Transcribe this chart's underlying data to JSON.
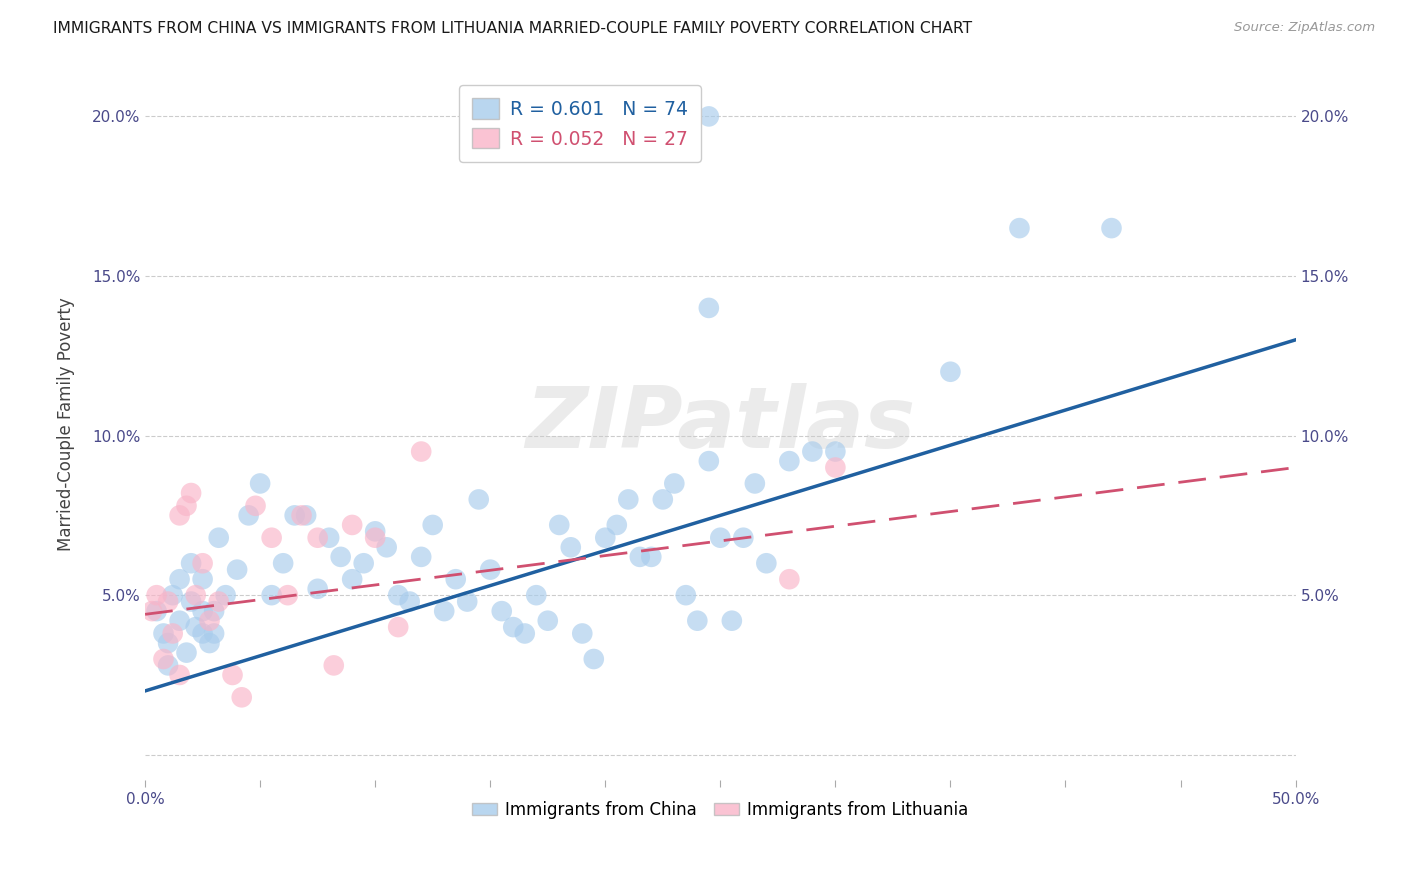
{
  "title": "IMMIGRANTS FROM CHINA VS IMMIGRANTS FROM LITHUANIA MARRIED-COUPLE FAMILY POVERTY CORRELATION CHART",
  "source": "Source: ZipAtlas.com",
  "ylabel": "Married-Couple Family Poverty",
  "xlim": [
    0.0,
    0.5
  ],
  "ylim": [
    -0.008,
    0.215
  ],
  "xticks": [
    0.0,
    0.05,
    0.1,
    0.15,
    0.2,
    0.25,
    0.3,
    0.35,
    0.4,
    0.45,
    0.5
  ],
  "yticks": [
    0.0,
    0.05,
    0.1,
    0.15,
    0.2
  ],
  "xtick_labels_full": [
    "0.0%",
    "",
    "",
    "",
    "",
    "",
    "",
    "",
    "",
    "",
    "50.0%"
  ],
  "ytick_labels_left": [
    "",
    "5.0%",
    "10.0%",
    "15.0%",
    "20.0%"
  ],
  "ytick_labels_right": [
    "",
    "5.0%",
    "10.0%",
    "15.0%",
    "20.0%"
  ],
  "china_color": "#a8ccec",
  "lithuania_color": "#f9b4c8",
  "china_line_color": "#2060a0",
  "lithuania_line_color": "#d05070",
  "R_china": 0.601,
  "N_china": 74,
  "R_lithuania": 0.052,
  "N_lithuania": 27,
  "legend_label_china": "Immigrants from China",
  "legend_label_lithuania": "Immigrants from Lithuania",
  "china_x": [
    0.005,
    0.008,
    0.01,
    0.01,
    0.012,
    0.015,
    0.015,
    0.018,
    0.02,
    0.02,
    0.022,
    0.025,
    0.025,
    0.025,
    0.028,
    0.03,
    0.03,
    0.032,
    0.035,
    0.04,
    0.045,
    0.05,
    0.055,
    0.06,
    0.065,
    0.07,
    0.075,
    0.08,
    0.085,
    0.09,
    0.095,
    0.1,
    0.105,
    0.11,
    0.115,
    0.12,
    0.125,
    0.13,
    0.135,
    0.14,
    0.145,
    0.15,
    0.155,
    0.16,
    0.165,
    0.17,
    0.175,
    0.18,
    0.185,
    0.19,
    0.195,
    0.2,
    0.205,
    0.21,
    0.215,
    0.22,
    0.225,
    0.23,
    0.235,
    0.24,
    0.245,
    0.25,
    0.255,
    0.26,
    0.265,
    0.27,
    0.28,
    0.29,
    0.3,
    0.35,
    0.38,
    0.42,
    0.245,
    0.245
  ],
  "china_y": [
    0.045,
    0.038,
    0.035,
    0.028,
    0.05,
    0.042,
    0.055,
    0.032,
    0.06,
    0.048,
    0.04,
    0.038,
    0.055,
    0.045,
    0.035,
    0.045,
    0.038,
    0.068,
    0.05,
    0.058,
    0.075,
    0.085,
    0.05,
    0.06,
    0.075,
    0.075,
    0.052,
    0.068,
    0.062,
    0.055,
    0.06,
    0.07,
    0.065,
    0.05,
    0.048,
    0.062,
    0.072,
    0.045,
    0.055,
    0.048,
    0.08,
    0.058,
    0.045,
    0.04,
    0.038,
    0.05,
    0.042,
    0.072,
    0.065,
    0.038,
    0.03,
    0.068,
    0.072,
    0.08,
    0.062,
    0.062,
    0.08,
    0.085,
    0.05,
    0.042,
    0.092,
    0.068,
    0.042,
    0.068,
    0.085,
    0.06,
    0.092,
    0.095,
    0.095,
    0.12,
    0.165,
    0.165,
    0.14,
    0.2
  ],
  "lithuania_x": [
    0.003,
    0.005,
    0.008,
    0.01,
    0.012,
    0.015,
    0.015,
    0.018,
    0.02,
    0.022,
    0.025,
    0.028,
    0.032,
    0.038,
    0.042,
    0.048,
    0.055,
    0.062,
    0.068,
    0.075,
    0.082,
    0.09,
    0.1,
    0.11,
    0.12,
    0.28,
    0.3
  ],
  "lithuania_y": [
    0.045,
    0.05,
    0.03,
    0.048,
    0.038,
    0.025,
    0.075,
    0.078,
    0.082,
    0.05,
    0.06,
    0.042,
    0.048,
    0.025,
    0.018,
    0.078,
    0.068,
    0.05,
    0.075,
    0.068,
    0.028,
    0.072,
    0.068,
    0.04,
    0.095,
    0.055,
    0.09
  ]
}
